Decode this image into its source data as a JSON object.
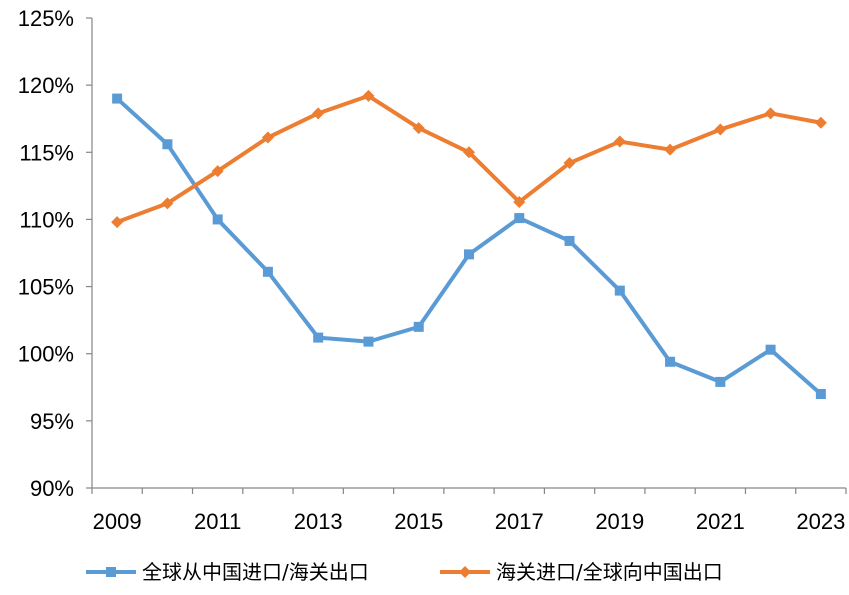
{
  "chart_data": {
    "type": "line",
    "title": "",
    "xlabel": "",
    "ylabel": "",
    "x": [
      2009,
      2010,
      2011,
      2012,
      2013,
      2014,
      2015,
      2016,
      2017,
      2018,
      2019,
      2020,
      2021,
      2022,
      2023
    ],
    "x_tick_labels": [
      "2009",
      "2011",
      "2013",
      "2015",
      "2017",
      "2019",
      "2021",
      "2023"
    ],
    "ylim": [
      90,
      125
    ],
    "y_ticks": [
      90,
      95,
      100,
      105,
      110,
      115,
      120,
      125
    ],
    "y_tick_labels": [
      "90%",
      "95%",
      "100%",
      "105%",
      "110%",
      "115%",
      "120%",
      "125%"
    ],
    "grid": false,
    "legend_position": "bottom",
    "series": [
      {
        "name": "全球从中国进口/海关出口",
        "color": "#5b9bd5",
        "marker": "square",
        "values": [
          119.0,
          115.6,
          110.0,
          106.1,
          101.2,
          100.9,
          102.0,
          107.4,
          110.1,
          108.4,
          104.7,
          99.4,
          97.9,
          100.3,
          97.0
        ]
      },
      {
        "name": "海关进口/全球向中国出口",
        "color": "#ed7d31",
        "marker": "diamond",
        "values": [
          109.8,
          111.2,
          113.6,
          116.1,
          117.9,
          119.2,
          116.8,
          115.0,
          111.3,
          114.2,
          115.8,
          115.2,
          116.7,
          117.9,
          117.2
        ]
      }
    ]
  }
}
